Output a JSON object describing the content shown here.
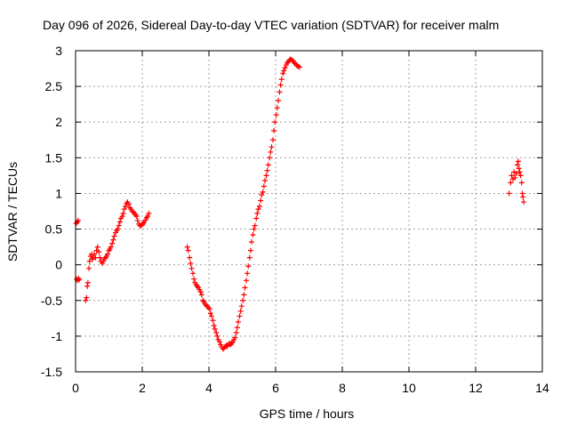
{
  "chart_data": {
    "type": "scatter",
    "title": "Day 096 of 2026, Sidereal Day-to-day VTEC variation (SDTVAR) for receiver malm",
    "xlabel": "GPS time / hours",
    "ylabel": "SDTVAR / TECUs",
    "xlim": [
      0,
      14
    ],
    "ylim": [
      -1.5,
      3
    ],
    "xticks": [
      "0",
      "2",
      "4",
      "6",
      "8",
      "10",
      "12",
      "14"
    ],
    "yticks": [
      "-1.5",
      "-1",
      "-0.5",
      "0",
      "0.5",
      "1",
      "1.5",
      "2",
      "2.5",
      "3"
    ],
    "grid": true,
    "marker": "plus",
    "series": [
      {
        "name": "SDTVAR",
        "color": "#ff0000",
        "points": [
          [
            0.02,
            0.58
          ],
          [
            0.05,
            0.6
          ],
          [
            0.08,
            0.62
          ],
          [
            0.03,
            -0.2
          ],
          [
            0.06,
            -0.22
          ],
          [
            0.09,
            -0.19
          ],
          [
            0.11,
            -0.21
          ],
          [
            0.3,
            -0.5
          ],
          [
            0.33,
            -0.46
          ],
          [
            0.35,
            -0.3
          ],
          [
            0.37,
            -0.25
          ],
          [
            0.4,
            -0.05
          ],
          [
            0.42,
            0.05
          ],
          [
            0.45,
            0.12
          ],
          [
            0.48,
            0.15
          ],
          [
            0.5,
            0.08
          ],
          [
            0.53,
            0.1
          ],
          [
            0.56,
            0.15
          ],
          [
            0.6,
            0.1
          ],
          [
            0.63,
            0.2
          ],
          [
            0.66,
            0.25
          ],
          [
            0.7,
            0.18
          ],
          [
            0.73,
            0.1
          ],
          [
            0.76,
            0.05
          ],
          [
            0.8,
            0.02
          ],
          [
            0.83,
            0.05
          ],
          [
            0.86,
            0.08
          ],
          [
            0.9,
            0.1
          ],
          [
            0.93,
            0.12
          ],
          [
            0.96,
            0.15
          ],
          [
            1.0,
            0.2
          ],
          [
            1.03,
            0.22
          ],
          [
            1.06,
            0.25
          ],
          [
            1.1,
            0.3
          ],
          [
            1.13,
            0.35
          ],
          [
            1.16,
            0.4
          ],
          [
            1.2,
            0.45
          ],
          [
            1.23,
            0.48
          ],
          [
            1.26,
            0.5
          ],
          [
            1.3,
            0.55
          ],
          [
            1.33,
            0.6
          ],
          [
            1.36,
            0.65
          ],
          [
            1.4,
            0.68
          ],
          [
            1.43,
            0.72
          ],
          [
            1.46,
            0.78
          ],
          [
            1.5,
            0.82
          ],
          [
            1.53,
            0.86
          ],
          [
            1.56,
            0.88
          ],
          [
            1.6,
            0.85
          ],
          [
            1.63,
            0.8
          ],
          [
            1.66,
            0.78
          ],
          [
            1.7,
            0.75
          ],
          [
            1.73,
            0.74
          ],
          [
            1.76,
            0.72
          ],
          [
            1.8,
            0.7
          ],
          [
            1.83,
            0.68
          ],
          [
            1.86,
            0.62
          ],
          [
            1.9,
            0.57
          ],
          [
            1.93,
            0.55
          ],
          [
            1.96,
            0.55
          ],
          [
            2.0,
            0.56
          ],
          [
            2.03,
            0.58
          ],
          [
            2.06,
            0.6
          ],
          [
            2.1,
            0.63
          ],
          [
            2.13,
            0.66
          ],
          [
            2.16,
            0.68
          ],
          [
            2.2,
            0.72
          ],
          [
            3.35,
            0.25
          ],
          [
            3.38,
            0.2
          ],
          [
            3.42,
            0.1
          ],
          [
            3.45,
            0.02
          ],
          [
            3.48,
            -0.05
          ],
          [
            3.52,
            -0.12
          ],
          [
            3.55,
            -0.2
          ],
          [
            3.58,
            -0.25
          ],
          [
            3.62,
            -0.28
          ],
          [
            3.65,
            -0.3
          ],
          [
            3.68,
            -0.32
          ],
          [
            3.72,
            -0.35
          ],
          [
            3.75,
            -0.38
          ],
          [
            3.78,
            -0.42
          ],
          [
            3.82,
            -0.5
          ],
          [
            3.85,
            -0.52
          ],
          [
            3.88,
            -0.55
          ],
          [
            3.92,
            -0.57
          ],
          [
            3.95,
            -0.58
          ],
          [
            3.98,
            -0.6
          ],
          [
            4.02,
            -0.62
          ],
          [
            4.05,
            -0.68
          ],
          [
            4.08,
            -0.72
          ],
          [
            4.12,
            -0.78
          ],
          [
            4.15,
            -0.85
          ],
          [
            4.18,
            -0.9
          ],
          [
            4.22,
            -0.95
          ],
          [
            4.25,
            -1.0
          ],
          [
            4.28,
            -1.05
          ],
          [
            4.32,
            -1.08
          ],
          [
            4.35,
            -1.12
          ],
          [
            4.38,
            -1.15
          ],
          [
            4.42,
            -1.18
          ],
          [
            4.45,
            -1.17
          ],
          [
            4.48,
            -1.15
          ],
          [
            4.52,
            -1.13
          ],
          [
            4.55,
            -1.14
          ],
          [
            4.58,
            -1.12
          ],
          [
            4.62,
            -1.1
          ],
          [
            4.65,
            -1.12
          ],
          [
            4.68,
            -1.1
          ],
          [
            4.72,
            -1.08
          ],
          [
            4.75,
            -1.05
          ],
          [
            4.78,
            -1.02
          ],
          [
            4.82,
            -0.95
          ],
          [
            4.85,
            -0.88
          ],
          [
            4.88,
            -0.8
          ],
          [
            4.92,
            -0.72
          ],
          [
            4.95,
            -0.65
          ],
          [
            4.98,
            -0.58
          ],
          [
            5.02,
            -0.5
          ],
          [
            5.05,
            -0.42
          ],
          [
            5.08,
            -0.32
          ],
          [
            5.12,
            -0.22
          ],
          [
            5.15,
            -0.12
          ],
          [
            5.18,
            -0.02
          ],
          [
            5.22,
            0.1
          ],
          [
            5.25,
            0.2
          ],
          [
            5.28,
            0.32
          ],
          [
            5.32,
            0.42
          ],
          [
            5.35,
            0.5
          ],
          [
            5.38,
            0.55
          ],
          [
            5.42,
            0.65
          ],
          [
            5.45,
            0.72
          ],
          [
            5.48,
            0.78
          ],
          [
            5.52,
            0.82
          ],
          [
            5.55,
            0.9
          ],
          [
            5.58,
            0.98
          ],
          [
            5.62,
            1.02
          ],
          [
            5.65,
            1.1
          ],
          [
            5.68,
            1.18
          ],
          [
            5.72,
            1.25
          ],
          [
            5.75,
            1.32
          ],
          [
            5.78,
            1.4
          ],
          [
            5.82,
            1.5
          ],
          [
            5.85,
            1.58
          ],
          [
            5.88,
            1.65
          ],
          [
            5.92,
            1.75
          ],
          [
            5.95,
            1.88
          ],
          [
            5.98,
            2.0
          ],
          [
            6.02,
            2.1
          ],
          [
            6.05,
            2.2
          ],
          [
            6.08,
            2.3
          ],
          [
            6.12,
            2.42
          ],
          [
            6.15,
            2.52
          ],
          [
            6.18,
            2.6
          ],
          [
            6.22,
            2.68
          ],
          [
            6.25,
            2.72
          ],
          [
            6.28,
            2.76
          ],
          [
            6.32,
            2.8
          ],
          [
            6.35,
            2.83
          ],
          [
            6.38,
            2.85
          ],
          [
            6.42,
            2.87
          ],
          [
            6.45,
            2.88
          ],
          [
            6.48,
            2.87
          ],
          [
            6.52,
            2.86
          ],
          [
            6.55,
            2.84
          ],
          [
            6.58,
            2.82
          ],
          [
            6.62,
            2.8
          ],
          [
            6.65,
            2.79
          ],
          [
            6.68,
            2.78
          ],
          [
            6.72,
            2.77
          ],
          [
            13.0,
            1.0
          ],
          [
            13.05,
            1.15
          ],
          [
            13.08,
            1.25
          ],
          [
            13.12,
            1.2
          ],
          [
            13.15,
            1.3
          ],
          [
            13.18,
            1.22
          ],
          [
            13.22,
            1.28
          ],
          [
            13.25,
            1.4
          ],
          [
            13.28,
            1.45
          ],
          [
            13.3,
            1.35
          ],
          [
            13.32,
            1.3
          ],
          [
            13.35,
            1.25
          ],
          [
            13.38,
            1.15
          ],
          [
            13.4,
            1.0
          ],
          [
            13.42,
            0.95
          ],
          [
            13.44,
            0.88
          ]
        ]
      }
    ]
  }
}
